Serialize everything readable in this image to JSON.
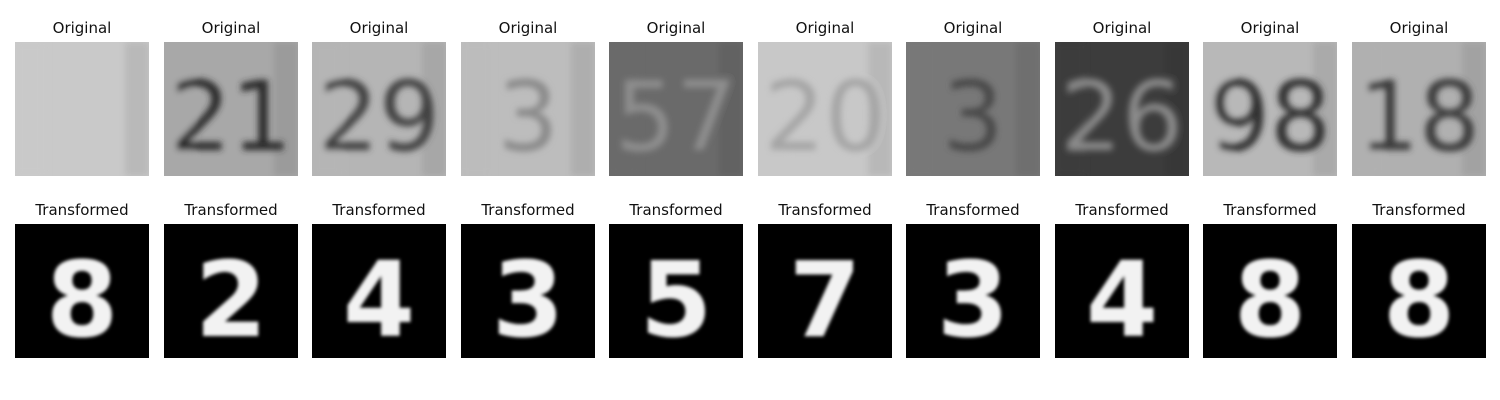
{
  "panels": [
    {
      "original_title": "Original",
      "transformed_title": "Transformed",
      "original_bg": "#c9c9c9",
      "original_fg": "#f2f2f2",
      "original_digit": "",
      "transformed_digit": "8"
    },
    {
      "original_title": "Original",
      "transformed_title": "Transformed",
      "original_bg": "#a8a8a8",
      "original_fg": "#2a2a2a",
      "original_digit": "21",
      "transformed_digit": "2"
    },
    {
      "original_title": "Original",
      "transformed_title": "Transformed",
      "original_bg": "#b5b5b5",
      "original_fg": "#404040",
      "original_digit": "29",
      "transformed_digit": "4"
    },
    {
      "original_title": "Original",
      "transformed_title": "Transformed",
      "original_bg": "#bdbdbd",
      "original_fg": "#8a8a8a",
      "original_digit": "3",
      "transformed_digit": "3"
    },
    {
      "original_title": "Original",
      "transformed_title": "Transformed",
      "original_bg": "#6a6a6a",
      "original_fg": "#8e8e8e",
      "original_digit": "57",
      "transformed_digit": "5"
    },
    {
      "original_title": "Original",
      "transformed_title": "Transformed",
      "original_bg": "#c8c8c8",
      "original_fg": "#a5a5a5",
      "original_digit": "20",
      "transformed_digit": "7"
    },
    {
      "original_title": "Original",
      "transformed_title": "Transformed",
      "original_bg": "#787878",
      "original_fg": "#4a4a4a",
      "original_digit": "3",
      "transformed_digit": "3"
    },
    {
      "original_title": "Original",
      "transformed_title": "Transformed",
      "original_bg": "#3c3c3c",
      "original_fg": "#8a8a8a",
      "original_digit": "26",
      "transformed_digit": "4"
    },
    {
      "original_title": "Original",
      "transformed_title": "Transformed",
      "original_bg": "#b8b8b8",
      "original_fg": "#2e2e2e",
      "original_digit": "98",
      "transformed_digit": "8"
    },
    {
      "original_title": "Original",
      "transformed_title": "Transformed",
      "original_bg": "#b0b0b0",
      "original_fg": "#3a3a3a",
      "original_digit": "18",
      "transformed_digit": "8"
    }
  ]
}
